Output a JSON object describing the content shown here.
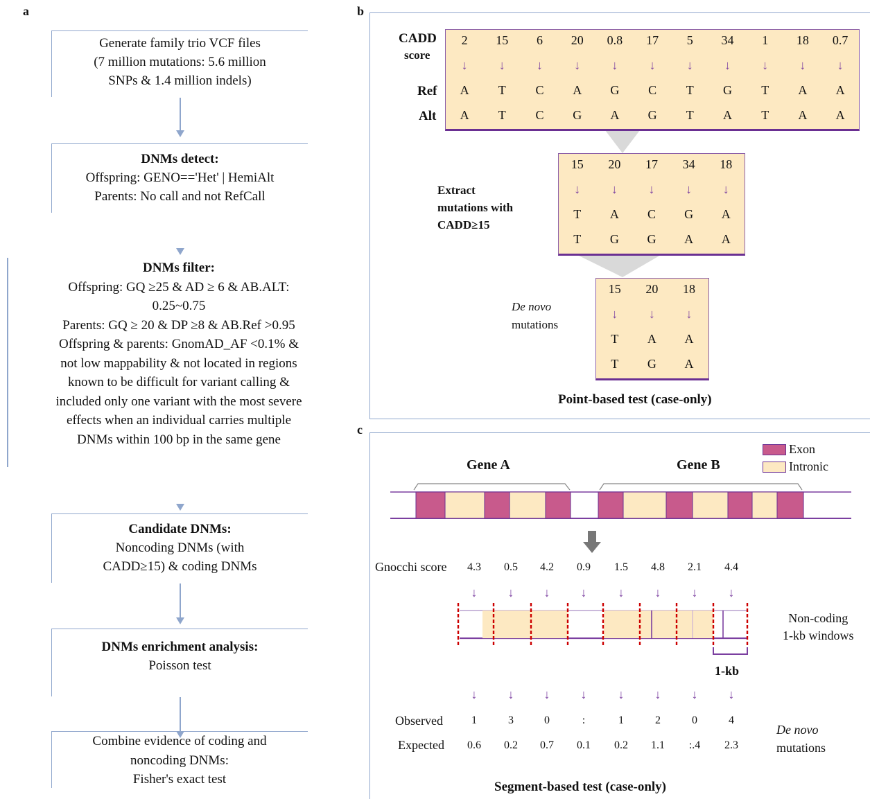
{
  "panel_a": {
    "letter": "a",
    "boxes": [
      {
        "title": "",
        "lines": [
          "Generate family trio VCF files",
          "(7 million mutations: 5.6 million",
          "SNPs & 1.4 million indels)"
        ]
      },
      {
        "title": "DNMs detect:",
        "lines": [
          "Offspring: GENO=='Het' | HemiAlt",
          "Parents: No call and not RefCall"
        ]
      },
      {
        "title": "DNMs filter:",
        "lines": [
          "Offspring: GQ ≥25 & AD ≥ 6 & AB.ALT:",
          "0.25~0.75",
          "Parents: GQ ≥ 20 & DP ≥8 & AB.Ref >0.95",
          "Offspring & parents: GnomAD_AF <0.1% &",
          "not low mappability & not located in regions",
          "known to be difficult for variant calling &",
          "included only one variant with the most severe",
          "effects when an individual carries multiple",
          "DNMs within 100 bp in the same gene"
        ]
      },
      {
        "title": "Candidate DNMs:",
        "lines": [
          "Noncoding DNMs (with",
          "CADD≥15) & coding DNMs"
        ]
      },
      {
        "title": "DNMs enrichment analysis:",
        "lines": [
          "Poisson test"
        ]
      },
      {
        "title": "",
        "lines": [
          "Combine evidence of coding and",
          "noncoding DNMs:",
          "Fisher's exact test"
        ]
      }
    ]
  },
  "panel_b": {
    "letter": "b",
    "row_labels": {
      "cadd1": "CADD",
      "cadd2": "score",
      "ref": "Ref",
      "alt": "Alt"
    },
    "top": {
      "scores": [
        "2",
        "15",
        "6",
        "20",
        "0.8",
        "17",
        "5",
        "34",
        "1",
        "18",
        "0.7"
      ],
      "ref": [
        "A",
        "T",
        "C",
        "A",
        "G",
        "C",
        "T",
        "G",
        "T",
        "A",
        "A"
      ],
      "alt": [
        "A",
        "T",
        "C",
        "G",
        "A",
        "G",
        "T",
        "A",
        "T",
        "A",
        "A"
      ]
    },
    "middle": {
      "label": [
        "Extract",
        "mutations with",
        "CADD≥15"
      ],
      "scores": [
        "15",
        "20",
        "17",
        "34",
        "18"
      ],
      "ref": [
        "T",
        "A",
        "C",
        "G",
        "A"
      ],
      "alt": [
        "T",
        "G",
        "G",
        "A",
        "A"
      ]
    },
    "bottom": {
      "label_italic": "De novo",
      "label_rest": "mutations",
      "scores": [
        "15",
        "20",
        "18"
      ],
      "ref": [
        "T",
        "A",
        "A"
      ],
      "alt": [
        "T",
        "G",
        "A"
      ]
    },
    "caption": "Point-based test (case-only)",
    "arrow_glyph": "↓"
  },
  "panel_c": {
    "letter": "c",
    "legend": {
      "exon": "Exon",
      "intronic": "Intronic"
    },
    "colors": {
      "exon": "#c85a8c",
      "intronic": "#fde9c2",
      "purple": "#7b3fa0",
      "red": "#cc0000"
    },
    "gene_a": "Gene A",
    "gene_b": "Gene B",
    "gnocchi_label": "Gnocchi score",
    "gnocchi_scores": [
      "4.3",
      "0.5",
      "4.2",
      "0.9",
      "1.5",
      "4.8",
      "2.1",
      "4.4"
    ],
    "windows_label": [
      "Non-coding",
      "1-kb windows"
    ],
    "kb_label": "1-kb",
    "observed_label": "Observed",
    "expected_label": "Expected",
    "observed": [
      "1",
      "3",
      "0",
      ":",
      "1",
      "2",
      "0",
      "4"
    ],
    "expected": [
      "0.6",
      "0.2",
      "0.7",
      "0.1",
      "0.2",
      "1.1",
      ":.4",
      "2.3"
    ],
    "dn_italic": "De novo",
    "dn_rest": "mutations",
    "caption": "Segment-based test (case-only)"
  }
}
